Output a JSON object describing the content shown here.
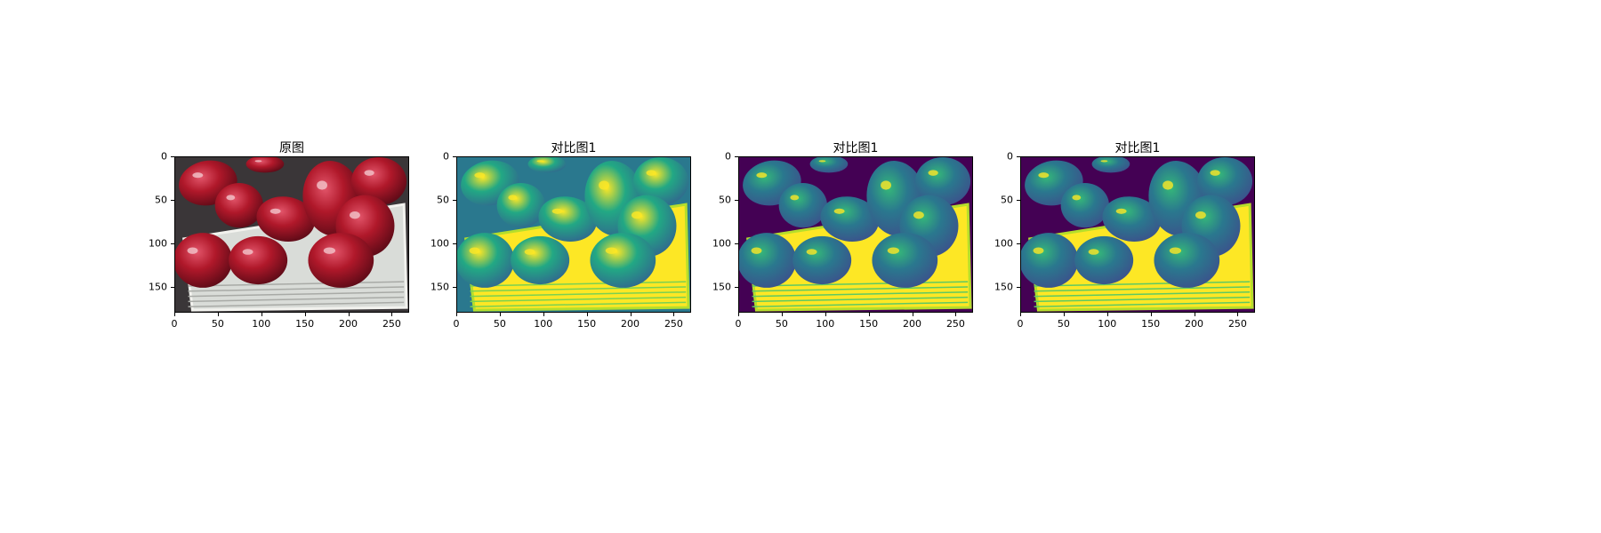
{
  "chart_data": [
    {
      "type": "image",
      "title": "原图",
      "colormap": "rgb",
      "xlim": [
        0,
        270
      ],
      "ylim": [
        180,
        0
      ],
      "xticks": [
        0,
        50,
        100,
        150,
        200,
        250
      ],
      "yticks": [
        0,
        50,
        100,
        150
      ]
    },
    {
      "type": "image",
      "title": "对比图1",
      "colormap": "viridis",
      "xlim": [
        0,
        270
      ],
      "ylim": [
        180,
        0
      ],
      "xticks": [
        0,
        50,
        100,
        150,
        200,
        250
      ],
      "yticks": [
        0,
        50,
        100,
        150
      ]
    },
    {
      "type": "image",
      "title": "对比图1",
      "colormap": "viridis",
      "xlim": [
        0,
        270
      ],
      "ylim": [
        180,
        0
      ],
      "xticks": [
        0,
        50,
        100,
        150,
        200,
        250
      ],
      "yticks": [
        0,
        50,
        100,
        150
      ]
    },
    {
      "type": "image",
      "title": "对比图1",
      "colormap": "viridis",
      "xlim": [
        0,
        270
      ],
      "ylim": [
        180,
        0
      ],
      "xticks": [
        0,
        50,
        100,
        150,
        200,
        250
      ],
      "yticks": [
        0,
        50,
        100,
        150
      ]
    }
  ],
  "colors": {
    "apple_red": "#b0182a",
    "apple_dark": "#5a0a16",
    "tray": "#d9dcd8",
    "background_dark": "#3a3638",
    "viridis_low": "#440154",
    "viridis_mid": "#21918c",
    "viridis_high": "#fde725"
  }
}
